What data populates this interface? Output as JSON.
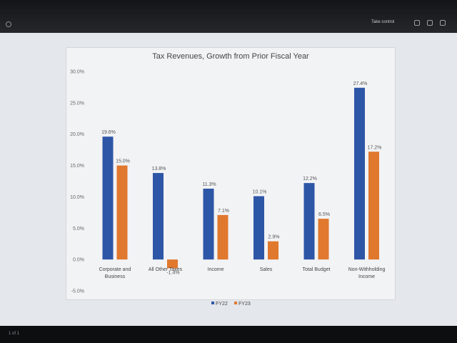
{
  "window": {
    "take_control_label": "Take control",
    "pager_label": "1 of 1"
  },
  "chart_data": {
    "type": "bar",
    "title": "Tax Revenues, Growth from Prior Fiscal Year",
    "categories": [
      [
        "Corporate and",
        "Business"
      ],
      [
        "All Other Taxes"
      ],
      [
        "Income"
      ],
      [
        "Sales"
      ],
      [
        "Total Budget"
      ],
      [
        "Non-Withholding",
        "Income"
      ]
    ],
    "series": [
      {
        "name": "FY22",
        "color": "#2e56a6",
        "values": [
          19.6,
          13.8,
          11.3,
          10.1,
          12.2,
          27.4
        ],
        "labels": [
          "19.6%",
          "13.8%",
          "11.3%",
          "10.1%",
          "12.2%",
          "27.4%"
        ]
      },
      {
        "name": "FY23",
        "color": "#e0782e",
        "values": [
          15.0,
          -1.4,
          7.1,
          2.9,
          6.5,
          17.2
        ],
        "labels": [
          "15.0%",
          "-1.4%",
          "7.1%",
          "2.9%",
          "6.5%",
          "17.2%"
        ]
      }
    ],
    "yticks": [
      30,
      25,
      20,
      15,
      10,
      5,
      0,
      -5
    ],
    "ytick_labels": [
      "30.0%",
      "25.0%",
      "20.0%",
      "15.0%",
      "10.0%",
      "5.0%",
      "0.0%",
      "-5.0%"
    ],
    "ylim": [
      -5,
      30
    ],
    "grid": false,
    "legend_position": "bottom"
  }
}
